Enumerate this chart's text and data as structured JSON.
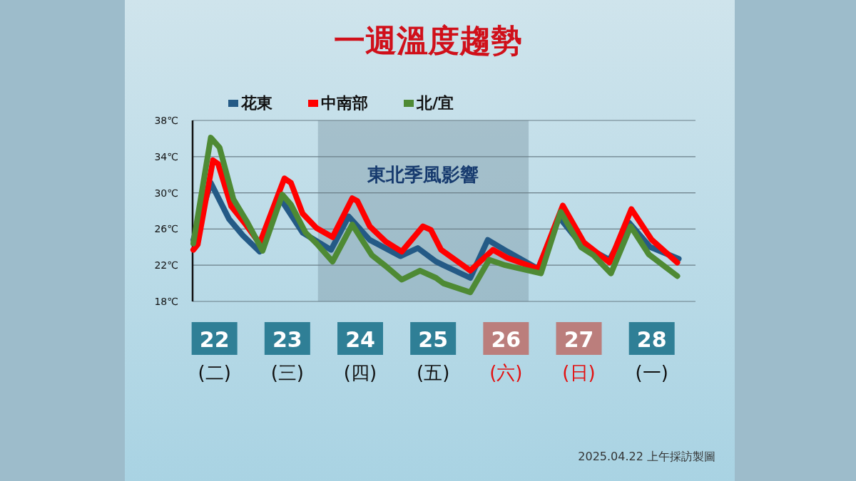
{
  "chart_data": {
    "type": "line",
    "title": "一週溫度趨勢",
    "xlim": [
      21.7,
      28.6
    ],
    "xticks": [
      {
        "value": 22,
        "label": "22\n(二)"
      },
      {
        "value": 23,
        "label": "23\n(三)"
      },
      {
        "value": 24,
        "label": "24\n(四)"
      },
      {
        "value": 25,
        "label": "25\n(五)"
      },
      {
        "value": 26,
        "label": "26\n(六)"
      },
      {
        "value": 27,
        "label": "27\n(日)"
      },
      {
        "value": 28,
        "label": "28\n(一)"
      }
    ],
    "ylim": [
      18,
      38
    ],
    "yticks": [
      {
        "value": 18,
        "label": "18℃"
      },
      {
        "value": 22,
        "label": "22℃"
      },
      {
        "value": 26,
        "label": "26℃"
      },
      {
        "value": 30,
        "label": "30℃"
      },
      {
        "value": 34,
        "label": "34℃"
      },
      {
        "value": 38,
        "label": "38℃"
      }
    ],
    "grid": "y",
    "legend": "top",
    "marker": "none",
    "line_style": "solid",
    "bands": [
      {
        "axis": "x",
        "from": 23.42,
        "to": 26.31,
        "label": "東北季風影響",
        "color": "#7f9aa6"
      }
    ],
    "series": [
      {
        "name": "花東",
        "color": "#245a86",
        "x": [
          21.71,
          21.95,
          22.2,
          22.39,
          22.62,
          22.91,
          23.21,
          23.6,
          23.84,
          24.13,
          24.55,
          24.79,
          25.04,
          25.14,
          25.51,
          25.75,
          26.02,
          26.44,
          26.73,
          27.03,
          27.42,
          27.69,
          27.98,
          28.37
        ],
        "values": [
          24.8,
          31.1,
          27.1,
          25.3,
          23.5,
          29.3,
          25.6,
          23.7,
          27.4,
          24.8,
          23.0,
          23.9,
          22.4,
          22.0,
          20.6,
          24.8,
          23.5,
          21.6,
          27.3,
          24.3,
          22.6,
          26.7,
          24.0,
          22.7
        ]
      },
      {
        "name": "中南部",
        "color": "#ff0000",
        "x": [
          21.71,
          21.77,
          21.98,
          22.05,
          22.23,
          22.41,
          22.62,
          22.96,
          23.05,
          23.21,
          23.4,
          23.62,
          23.89,
          23.96,
          24.13,
          24.35,
          24.57,
          24.86,
          24.97,
          25.11,
          25.51,
          25.82,
          26.02,
          26.44,
          26.78,
          27.07,
          27.42,
          27.72,
          28.0,
          28.35
        ],
        "values": [
          23.7,
          24.3,
          33.6,
          33.2,
          28.5,
          26.7,
          24.4,
          31.6,
          31.1,
          27.7,
          26.1,
          25.1,
          29.4,
          29.1,
          26.3,
          24.6,
          23.5,
          26.3,
          25.9,
          23.7,
          21.4,
          23.7,
          22.8,
          21.6,
          28.6,
          24.5,
          22.3,
          28.2,
          24.8,
          22.3
        ]
      },
      {
        "name": "北/宜",
        "color": "#4e8a34",
        "x": [
          21.71,
          21.95,
          22.07,
          22.26,
          22.44,
          22.66,
          22.93,
          23.05,
          23.25,
          23.4,
          23.62,
          23.89,
          24.16,
          24.35,
          24.57,
          24.82,
          25.04,
          25.14,
          25.51,
          25.77,
          25.99,
          26.48,
          26.75,
          27.03,
          27.2,
          27.44,
          27.71,
          27.96,
          28.35
        ],
        "values": [
          24.4,
          36.1,
          35.0,
          29.3,
          26.9,
          23.6,
          29.8,
          28.7,
          25.6,
          24.4,
          22.4,
          26.5,
          23.1,
          21.9,
          20.4,
          21.4,
          20.6,
          20.0,
          19.0,
          22.6,
          22.0,
          21.1,
          27.9,
          24.0,
          23.1,
          21.1,
          26.3,
          23.2,
          20.8
        ]
      }
    ],
    "annotations": [
      "2025.04.22 上午採訪製圖"
    ]
  }
}
